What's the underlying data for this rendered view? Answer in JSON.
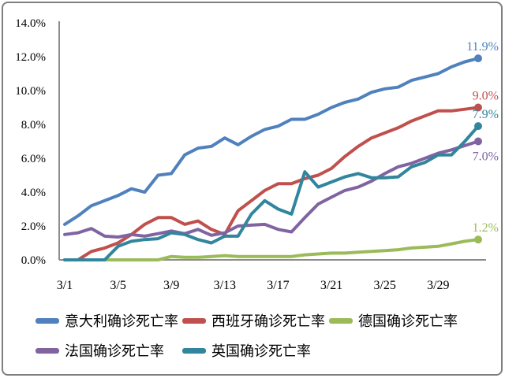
{
  "chart_data": {
    "type": "line",
    "title": "",
    "grid": false,
    "legend_position": "bottom",
    "axis_color": "#8c8c8c",
    "background": "#ffffff",
    "n_points": 32,
    "x_start_date": "3/1",
    "x_end_date": "4/1",
    "x_tick_labels": [
      "3/1",
      "3/5",
      "3/9",
      "3/13",
      "3/17",
      "3/21",
      "3/25",
      "3/29"
    ],
    "x_tick_positions": [
      0,
      4,
      8,
      12,
      16,
      20,
      24,
      28
    ],
    "y_ticks": [
      "0.0%",
      "2.0%",
      "4.0%",
      "6.0%",
      "8.0%",
      "10.0%",
      "12.0%",
      "14.0%"
    ],
    "y_tick_values": [
      0,
      2,
      4,
      6,
      8,
      10,
      12,
      14
    ],
    "ylim": [
      0,
      14
    ],
    "series": [
      {
        "key": "italy",
        "name": "意大利确诊死亡率",
        "color": "#4F81BD",
        "end_label": "11.9%",
        "end_label_position": "above",
        "values": [
          2.1,
          2.6,
          3.2,
          3.5,
          3.8,
          4.2,
          4.0,
          5.0,
          5.1,
          6.2,
          6.6,
          6.7,
          7.2,
          6.8,
          7.3,
          7.7,
          7.9,
          8.3,
          8.3,
          8.6,
          9.0,
          9.3,
          9.5,
          9.9,
          10.1,
          10.2,
          10.6,
          10.8,
          11.0,
          11.4,
          11.7,
          11.9
        ]
      },
      {
        "key": "spain",
        "name": "西班牙确诊死亡率",
        "color": "#C0504D",
        "end_label": "9.0%",
        "end_label_position": "above",
        "values": [
          0.0,
          0.0,
          0.5,
          0.7,
          1.0,
          1.5,
          2.1,
          2.5,
          2.5,
          2.1,
          2.3,
          1.8,
          1.5,
          2.9,
          3.5,
          4.1,
          4.5,
          4.5,
          4.8,
          5.0,
          5.4,
          6.1,
          6.7,
          7.2,
          7.5,
          7.8,
          8.2,
          8.5,
          8.8,
          8.8,
          8.9,
          9.0
        ]
      },
      {
        "key": "germany",
        "name": "德国确诊死亡率",
        "color": "#9BBB59",
        "end_label": "1.2%",
        "end_label_position": "above",
        "values": [
          0.0,
          0.0,
          0.0,
          0.0,
          0.0,
          0.0,
          0.0,
          0.0,
          0.2,
          0.15,
          0.15,
          0.2,
          0.25,
          0.2,
          0.2,
          0.2,
          0.2,
          0.2,
          0.3,
          0.35,
          0.4,
          0.4,
          0.45,
          0.5,
          0.55,
          0.6,
          0.7,
          0.75,
          0.8,
          0.95,
          1.1,
          1.2
        ]
      },
      {
        "key": "france",
        "name": "法国确诊死亡率",
        "color": "#8064A2",
        "end_label": "7.0%",
        "end_label_position": "below",
        "values": [
          1.5,
          1.6,
          1.85,
          1.4,
          1.35,
          1.5,
          1.4,
          1.55,
          1.7,
          1.55,
          1.8,
          1.45,
          1.6,
          2.0,
          2.05,
          2.1,
          1.8,
          1.65,
          2.5,
          3.3,
          3.7,
          4.1,
          4.3,
          4.65,
          5.1,
          5.5,
          5.7,
          6.0,
          6.3,
          6.5,
          6.75,
          7.0
        ]
      },
      {
        "key": "uk",
        "name": "英国确诊死亡率",
        "color": "#31859C",
        "end_label": "7.9%",
        "end_label_position": "above",
        "values": [
          0.0,
          0.0,
          0.0,
          0.0,
          0.8,
          1.1,
          1.2,
          1.25,
          1.6,
          1.5,
          1.2,
          1.0,
          1.4,
          1.4,
          2.7,
          3.5,
          3.0,
          2.7,
          5.2,
          4.3,
          4.6,
          4.9,
          5.1,
          4.85,
          4.85,
          4.9,
          5.5,
          5.75,
          6.2,
          6.2,
          7.0,
          7.9
        ]
      }
    ]
  }
}
